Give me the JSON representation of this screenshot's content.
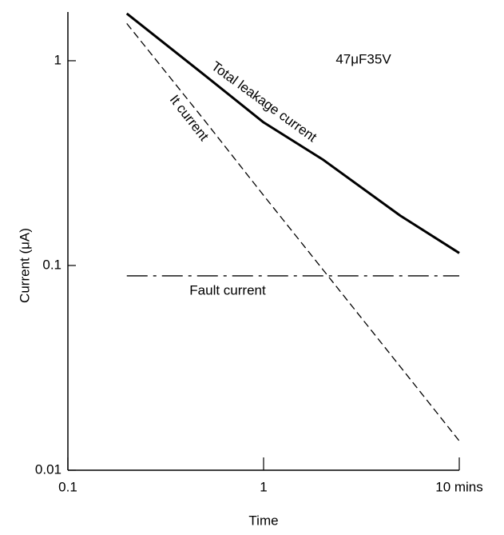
{
  "chart_data": {
    "type": "line",
    "x_label": "Time",
    "y_label": "Current (μA)",
    "x": [
      0.2,
      0.5,
      1,
      2,
      5,
      10
    ],
    "series": [
      {
        "name": "Total leakage current",
        "color": "#000000",
        "style": "solid",
        "values": [
          1.7,
          0.85,
          0.5,
          0.33,
          0.175,
          0.115
        ]
      },
      {
        "name": "It current",
        "color": "#000000",
        "style": "dashed",
        "values": [
          1.52,
          0.51,
          0.22,
          0.096,
          0.032,
          0.0139
        ]
      },
      {
        "name": "Fault current",
        "color": "#000000",
        "style": "dashdot",
        "values": [
          0.089,
          0.089,
          0.089,
          0.089,
          0.089,
          0.089
        ]
      }
    ],
    "annotation": "47μF35V",
    "xlim": [
      0.1,
      10
    ],
    "ylim": [
      0.01,
      1.73
    ],
    "xticks": [
      0.1,
      1,
      {
        "value": 10,
        "label": "10 mins"
      }
    ],
    "yticks": [
      0.01,
      0.1,
      1
    ],
    "xscale": "log",
    "yscale": "log",
    "grid": false
  }
}
